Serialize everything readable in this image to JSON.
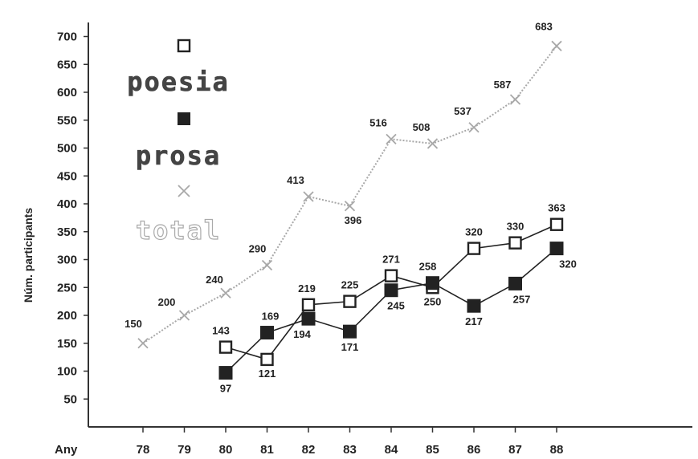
{
  "chart_data": {
    "type": "line",
    "title": "",
    "xlabel": "Any",
    "ylabel": "Núm. participants",
    "x": [
      "78",
      "79",
      "80",
      "81",
      "82",
      "83",
      "84",
      "85",
      "86",
      "87",
      "88"
    ],
    "yticks": [
      "50",
      "100",
      "150",
      "200",
      "250",
      "300",
      "350",
      "400",
      "450",
      "500",
      "550",
      "600",
      "650",
      "700"
    ],
    "ylim": [
      0,
      720
    ],
    "grid": false,
    "legend_position": "top-left",
    "series": [
      {
        "name": "poesia",
        "marker": "hollow-square",
        "color": "#222222",
        "x": [
          "80",
          "81",
          "82",
          "83",
          "84",
          "85",
          "86",
          "87",
          "88"
        ],
        "values": [
          143,
          121,
          219,
          225,
          271,
          250,
          320,
          330,
          363
        ],
        "labels": [
          "143",
          "121",
          "219",
          "225",
          "271",
          "250",
          "320",
          "330",
          "363"
        ]
      },
      {
        "name": "prosa",
        "marker": "filled-square",
        "color": "#222222",
        "x": [
          "80",
          "81",
          "82",
          "83",
          "84",
          "85",
          "86",
          "87",
          "88"
        ],
        "values": [
          97,
          169,
          194,
          171,
          245,
          258,
          217,
          257,
          320
        ],
        "labels": [
          "97",
          "169",
          "194",
          "171",
          "245",
          "258",
          "217",
          "257",
          "320"
        ]
      },
      {
        "name": "total",
        "marker": "cross",
        "color": "#a8a8a8",
        "x": [
          "78",
          "79",
          "80",
          "81",
          "82",
          "83",
          "84",
          "85",
          "86",
          "87",
          "88"
        ],
        "values": [
          150,
          200,
          240,
          290,
          413,
          396,
          516,
          508,
          537,
          587,
          683
        ],
        "labels": [
          "150",
          "200",
          "240",
          "290",
          "413",
          "396",
          "516",
          "508",
          "537",
          "587",
          "683"
        ]
      }
    ]
  }
}
